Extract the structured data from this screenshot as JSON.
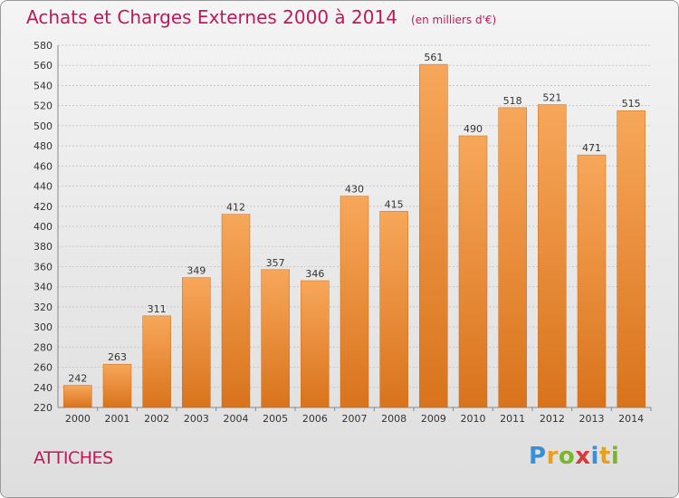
{
  "header": {
    "title": "Achats et Charges Externes 2000 à 2014",
    "unit": "(en milliers d'€)"
  },
  "commune": "ATTICHES",
  "logo": {
    "text": "Proxiti",
    "letters": [
      "P",
      "r",
      "o",
      "x",
      "i",
      "t",
      "i"
    ],
    "colors": [
      "#3b8fd4",
      "#e8a020",
      "#7ab52e",
      "#d63a3a",
      "#3b8fd4",
      "#e8a020",
      "#7ab52e"
    ]
  },
  "colors": {
    "title": "#c0185a",
    "bar_top": "#f7a75a",
    "bar_bottom": "#d9731c"
  },
  "chart_data": {
    "type": "bar",
    "categories": [
      "2000",
      "2001",
      "2002",
      "2003",
      "2004",
      "2005",
      "2006",
      "2007",
      "2008",
      "2009",
      "2010",
      "2011",
      "2012",
      "2013",
      "2014"
    ],
    "values": [
      242,
      263,
      311,
      349,
      412,
      357,
      346,
      430,
      415,
      561,
      490,
      518,
      521,
      471,
      515
    ],
    "ylim": [
      220,
      580
    ],
    "yticks": [
      220,
      240,
      260,
      280,
      300,
      320,
      340,
      360,
      380,
      400,
      420,
      440,
      460,
      480,
      500,
      520,
      540,
      560,
      580
    ],
    "title": "Achats et Charges Externes 2000 à 2014",
    "xlabel": "",
    "ylabel": "",
    "grid": true
  }
}
